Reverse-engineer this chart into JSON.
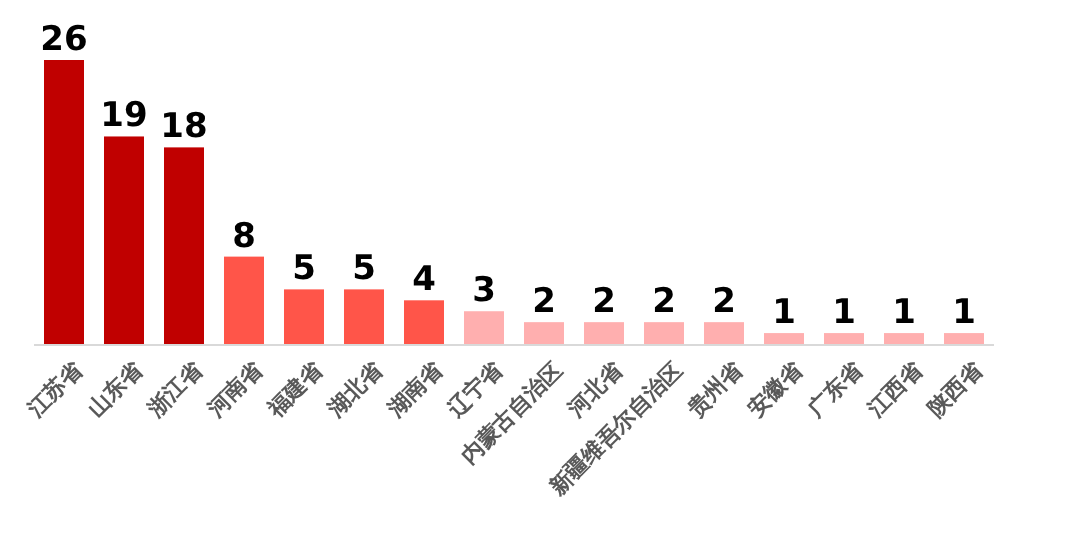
{
  "chart_data": {
    "type": "bar",
    "categories": [
      "江苏省",
      "山东省",
      "浙江省",
      "河南省",
      "福建省",
      "湖北省",
      "湖南省",
      "辽宁省",
      "内蒙古自治区",
      "河北省",
      "新疆维吾尔自治区",
      "贵州省",
      "安徽省",
      "广东省",
      "江西省",
      "陕西省"
    ],
    "values": [
      26,
      19,
      18,
      8,
      5,
      5,
      4,
      3,
      2,
      2,
      2,
      2,
      1,
      1,
      1,
      1
    ],
    "colors": [
      "#c00000",
      "#c00000",
      "#c00000",
      "#ff5549",
      "#ff5549",
      "#ff5549",
      "#ff5549",
      "#ffafaf",
      "#ffafaf",
      "#ffafaf",
      "#ffafaf",
      "#ffafaf",
      "#ffafaf",
      "#ffafaf",
      "#ffafaf",
      "#ffafaf"
    ],
    "data_labels": true
  }
}
